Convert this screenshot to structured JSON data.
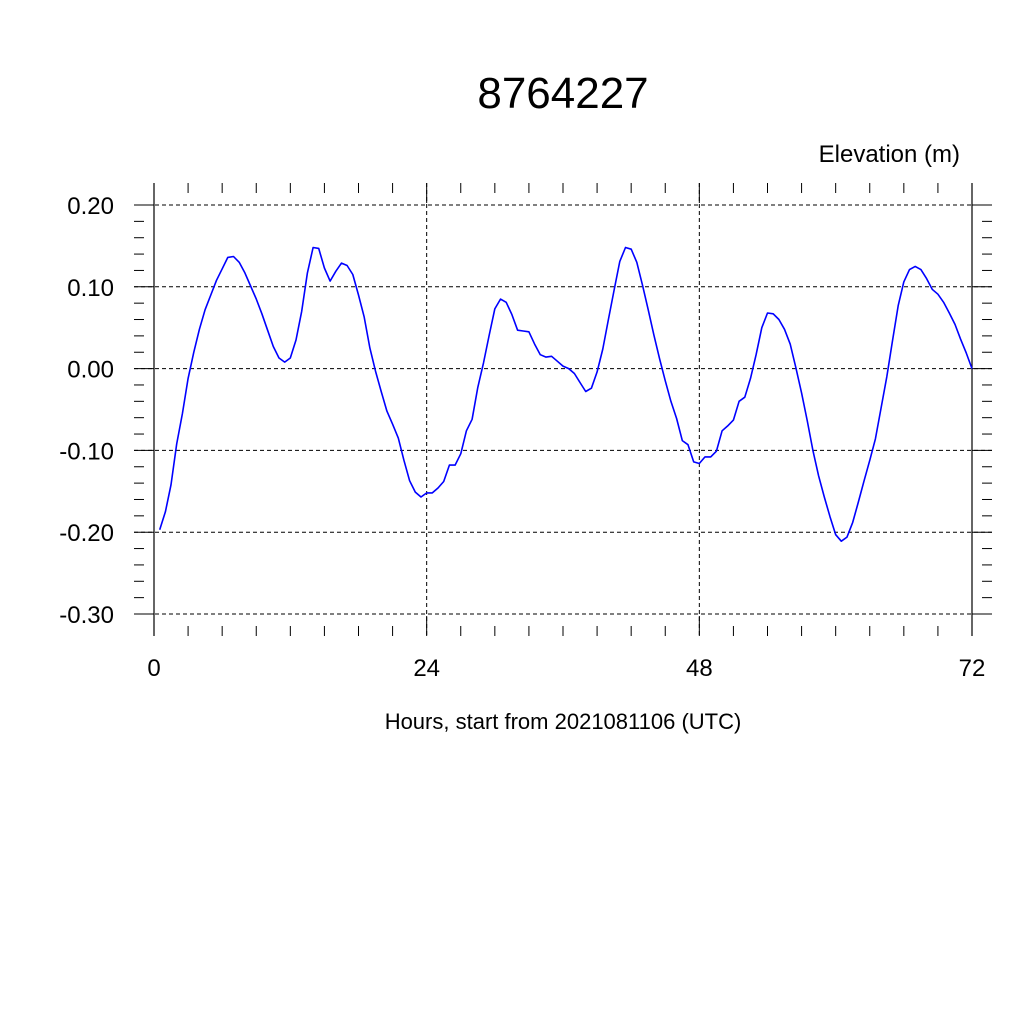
{
  "chart_data": {
    "type": "line",
    "title": "8764227",
    "units_label": "Elevation (m)",
    "xlabel": "Hours, start from 2021081106 (UTC)",
    "ylabel": "",
    "xlim": [
      0,
      72
    ],
    "ylim": [
      -0.3,
      0.2
    ],
    "x_ticks": [
      0,
      24,
      48,
      72
    ],
    "x_tick_labels": [
      "0",
      "24",
      "48",
      "72"
    ],
    "y_ticks": [
      0.2,
      0.1,
      0.0,
      -0.1,
      -0.2,
      -0.3
    ],
    "y_tick_labels": [
      "0.20",
      "0.10",
      "0.00",
      "-0.10",
      "-0.20",
      "-0.30"
    ],
    "grid": true,
    "line_color": "#0000ff",
    "series": [
      {
        "x": [
          0.5,
          1,
          1.5,
          2,
          2.5,
          3,
          3.5,
          4,
          4.5,
          5,
          5.5,
          6,
          6.5,
          7,
          7.5,
          8,
          8.5,
          9,
          9.5,
          10,
          10.5,
          11,
          11.5,
          12,
          12.5,
          13,
          13.5,
          14,
          14.5,
          15,
          15.5,
          16,
          16.5,
          17,
          17.5,
          18,
          18.5,
          19,
          19.5,
          20,
          20.5,
          21,
          21.5,
          22,
          22.5,
          23,
          23.5,
          24,
          24.5,
          25,
          25.5,
          26,
          26.5,
          27,
          27.5,
          28,
          28.5,
          29,
          29.5,
          30,
          30.5,
          31,
          31.5,
          32,
          32.5,
          33,
          33.5,
          34,
          34.5,
          35,
          35.5,
          36,
          36.5,
          37,
          37.5,
          38,
          38.5,
          39,
          39.5,
          40,
          40.5,
          41,
          41.5,
          42,
          42.5,
          43,
          43.5,
          44,
          44.5,
          45,
          45.5,
          46,
          46.5,
          47,
          47.5,
          48,
          48.5,
          49,
          49.5,
          50,
          50.5,
          51,
          51.5,
          52,
          52.5,
          53,
          53.5,
          54,
          54.5,
          55,
          55.5,
          56,
          56.5,
          57,
          57.5,
          58,
          58.5,
          59,
          59.5,
          60,
          60.5,
          61,
          61.5,
          62,
          62.5,
          63,
          63.5,
          64,
          64.5,
          65,
          65.5,
          66,
          66.5,
          67,
          67.5,
          68,
          68.5,
          69,
          69.5,
          70,
          70.5,
          71,
          71.5,
          72
        ],
        "y": [
          -0.197,
          -0.175,
          -0.142,
          -0.092,
          -0.055,
          -0.012,
          0.02,
          0.048,
          0.072,
          0.09,
          0.108,
          0.122,
          0.136,
          0.137,
          0.13,
          0.117,
          0.101,
          0.085,
          0.067,
          0.047,
          0.027,
          0.013,
          0.008,
          0.013,
          0.035,
          0.07,
          0.117,
          0.148,
          0.147,
          0.123,
          0.107,
          0.119,
          0.129,
          0.126,
          0.115,
          0.09,
          0.063,
          0.025,
          -0.003,
          -0.028,
          -0.052,
          -0.068,
          -0.085,
          -0.112,
          -0.137,
          -0.151,
          -0.157,
          -0.152,
          -0.152,
          -0.146,
          -0.138,
          -0.118,
          -0.118,
          -0.104,
          -0.076,
          -0.062,
          -0.023,
          0.007,
          0.041,
          0.073,
          0.085,
          0.081,
          0.066,
          0.047,
          0.046,
          0.045,
          0.03,
          0.017,
          0.014,
          0.015,
          0.009,
          0.003,
          0.0,
          -0.006,
          -0.017,
          -0.028,
          -0.024,
          -0.004,
          0.024,
          0.06,
          0.096,
          0.131,
          0.148,
          0.146,
          0.13,
          0.102,
          0.072,
          0.041,
          0.012,
          -0.015,
          -0.04,
          -0.061,
          -0.088,
          -0.093,
          -0.114,
          -0.116,
          -0.108,
          -0.108,
          -0.101,
          -0.076,
          -0.07,
          -0.063,
          -0.04,
          -0.035,
          -0.012,
          0.017,
          0.05,
          0.068,
          0.067,
          0.06,
          0.048,
          0.03,
          0.001,
          -0.03,
          -0.064,
          -0.1,
          -0.131,
          -0.157,
          -0.181,
          -0.203,
          -0.211,
          -0.206,
          -0.188,
          -0.163,
          -0.137,
          -0.112,
          -0.086,
          -0.048,
          -0.01,
          0.034,
          0.077,
          0.106,
          0.121,
          0.125,
          0.121,
          0.11,
          0.097,
          0.091,
          0.081,
          0.068,
          0.054,
          0.036,
          0.019,
          0.0
        ]
      }
    ]
  }
}
